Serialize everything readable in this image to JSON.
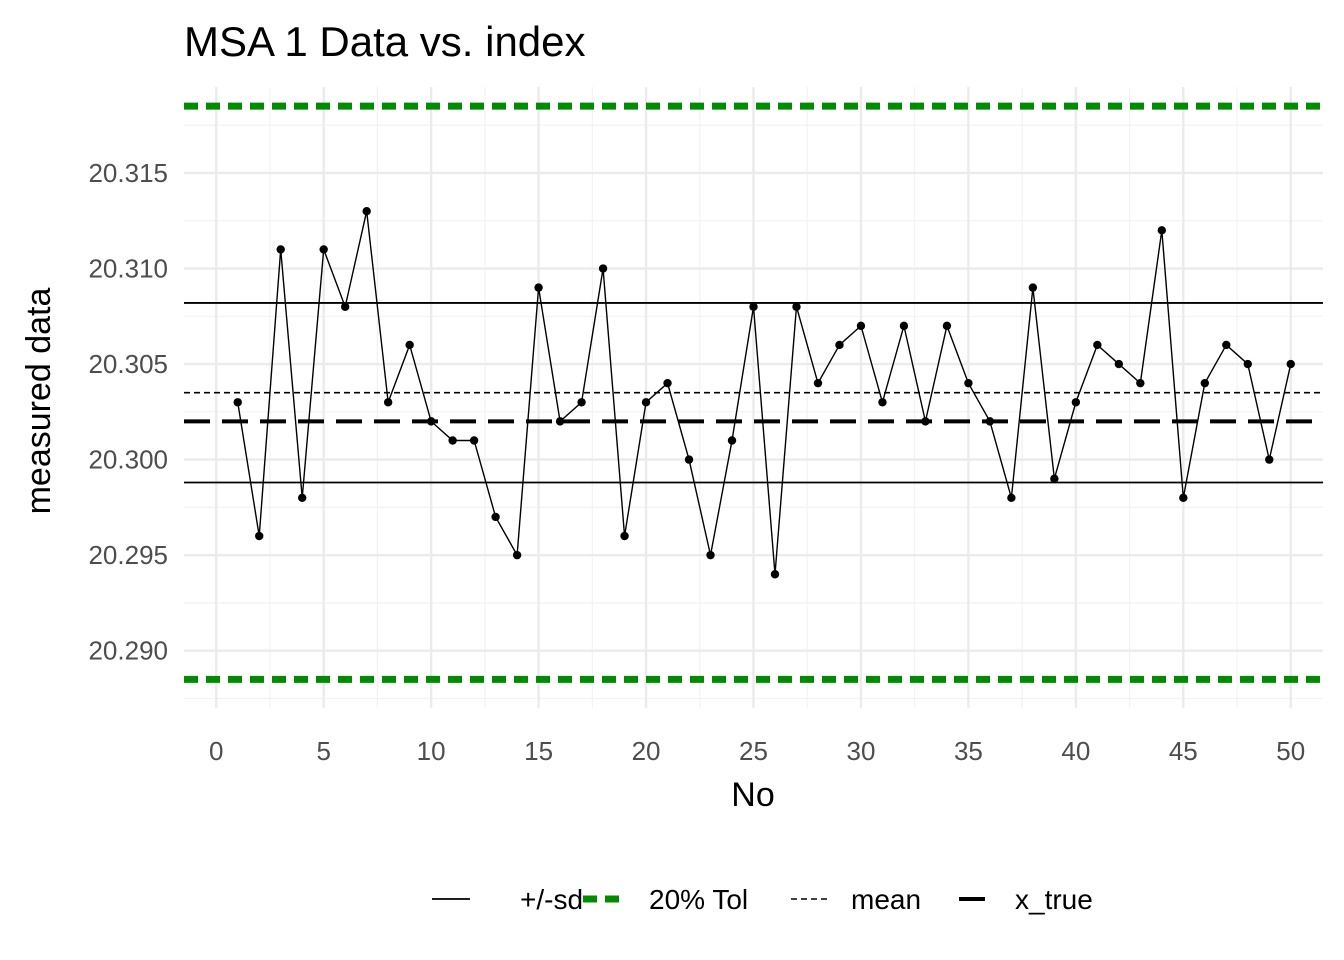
{
  "chart_data": {
    "type": "line",
    "title": "MSA 1 Data vs. index",
    "xlabel": "No",
    "ylabel": "measured data",
    "xlim": [
      -1.5,
      51.5
    ],
    "ylim": [
      20.287,
      20.3195
    ],
    "x_ticks": [
      0,
      5,
      10,
      15,
      20,
      25,
      30,
      35,
      40,
      45,
      50
    ],
    "x_tick_labels": [
      "0",
      "5",
      "10",
      "15",
      "20",
      "25",
      "30",
      "35",
      "40",
      "45",
      "50"
    ],
    "y_ticks": [
      20.29,
      20.295,
      20.3,
      20.305,
      20.31,
      20.315
    ],
    "y_tick_labels": [
      "20.290",
      "20.295",
      "20.300",
      "20.305",
      "20.310",
      "20.315"
    ],
    "grid": true,
    "series": [
      {
        "name": "measured data",
        "x": [
          1,
          2,
          3,
          4,
          5,
          6,
          7,
          8,
          9,
          10,
          11,
          12,
          13,
          14,
          15,
          16,
          17,
          18,
          19,
          20,
          21,
          22,
          23,
          24,
          25,
          26,
          27,
          28,
          29,
          30,
          31,
          32,
          33,
          34,
          35,
          36,
          37,
          38,
          39,
          40,
          41,
          42,
          43,
          44,
          45,
          46,
          47,
          48,
          49,
          50
        ],
        "values": [
          20.303,
          20.296,
          20.311,
          20.298,
          20.311,
          20.308,
          20.313,
          20.303,
          20.306,
          20.302,
          20.301,
          20.301,
          20.297,
          20.295,
          20.309,
          20.302,
          20.303,
          20.31,
          20.296,
          20.303,
          20.304,
          20.3,
          20.295,
          20.301,
          20.308,
          20.294,
          20.308,
          20.304,
          20.306,
          20.307,
          20.303,
          20.307,
          20.302,
          20.307,
          20.304,
          20.302,
          20.298,
          20.309,
          20.299,
          20.303,
          20.306,
          20.305,
          20.304,
          20.312,
          20.298,
          20.304,
          20.306,
          20.305,
          20.3,
          20.305
        ]
      }
    ],
    "reference_lines": [
      {
        "name": "+/-sd",
        "values": [
          20.3082,
          20.2988
        ],
        "color": "#000000",
        "style": "solid"
      },
      {
        "name": "20% Tol",
        "values": [
          20.3185,
          20.2885
        ],
        "color": "#008b00",
        "style": "dotted"
      },
      {
        "name": "mean",
        "values": [
          20.3035
        ],
        "color": "#000000",
        "style": "dashed"
      },
      {
        "name": "x_true",
        "values": [
          20.302
        ],
        "color": "#000000",
        "style": "longdash"
      }
    ],
    "legend_position": "bottom"
  }
}
